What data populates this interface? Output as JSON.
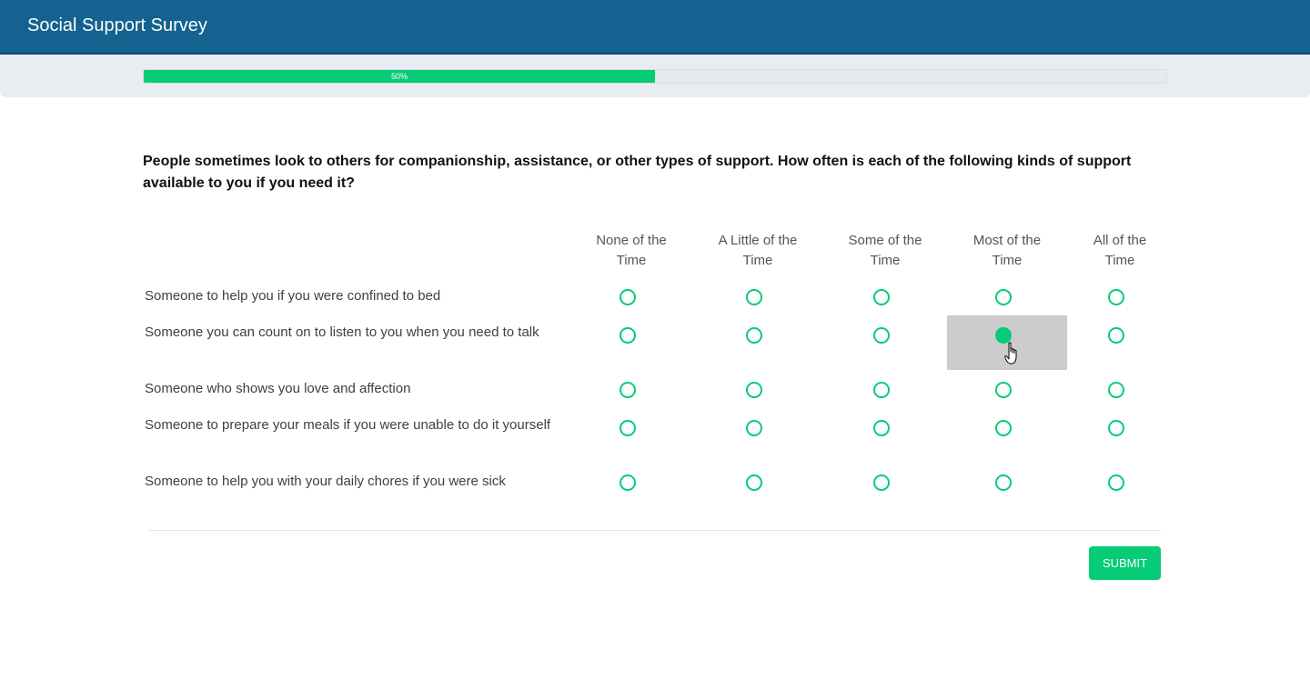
{
  "header": {
    "title": "Social Support Survey"
  },
  "progress": {
    "value": 0.5,
    "label": "50%"
  },
  "question": {
    "text": "People sometimes look to others for companionship, assistance, or other types of support. How often is each of the following kinds of support available to you if you need it?"
  },
  "columns": [
    {
      "line1": "None of the",
      "line2": "Time"
    },
    {
      "line1": "A Little of the",
      "line2": "Time"
    },
    {
      "line1": "Some of the",
      "line2": "Time"
    },
    {
      "line1": "Most of the",
      "line2": "Time"
    },
    {
      "line1": "All of the",
      "line2": "Time"
    }
  ],
  "rows": [
    {
      "label": "Someone to help you if you were confined to bed",
      "selected": null
    },
    {
      "label": "Someone you can count on to listen to you when you need to talk",
      "selected": 3
    },
    {
      "label": "Someone who shows you love and affection",
      "selected": null
    },
    {
      "label": "Someone to prepare your meals if you were unable to do it yourself",
      "selected": null
    },
    {
      "label": "Someone to help you with your daily chores if you were sick",
      "selected": null
    }
  ],
  "submit": {
    "label": "SUBMIT"
  },
  "colors": {
    "header": "#14628f",
    "accent": "#06cc78",
    "selected_cell": "#cccccc"
  }
}
